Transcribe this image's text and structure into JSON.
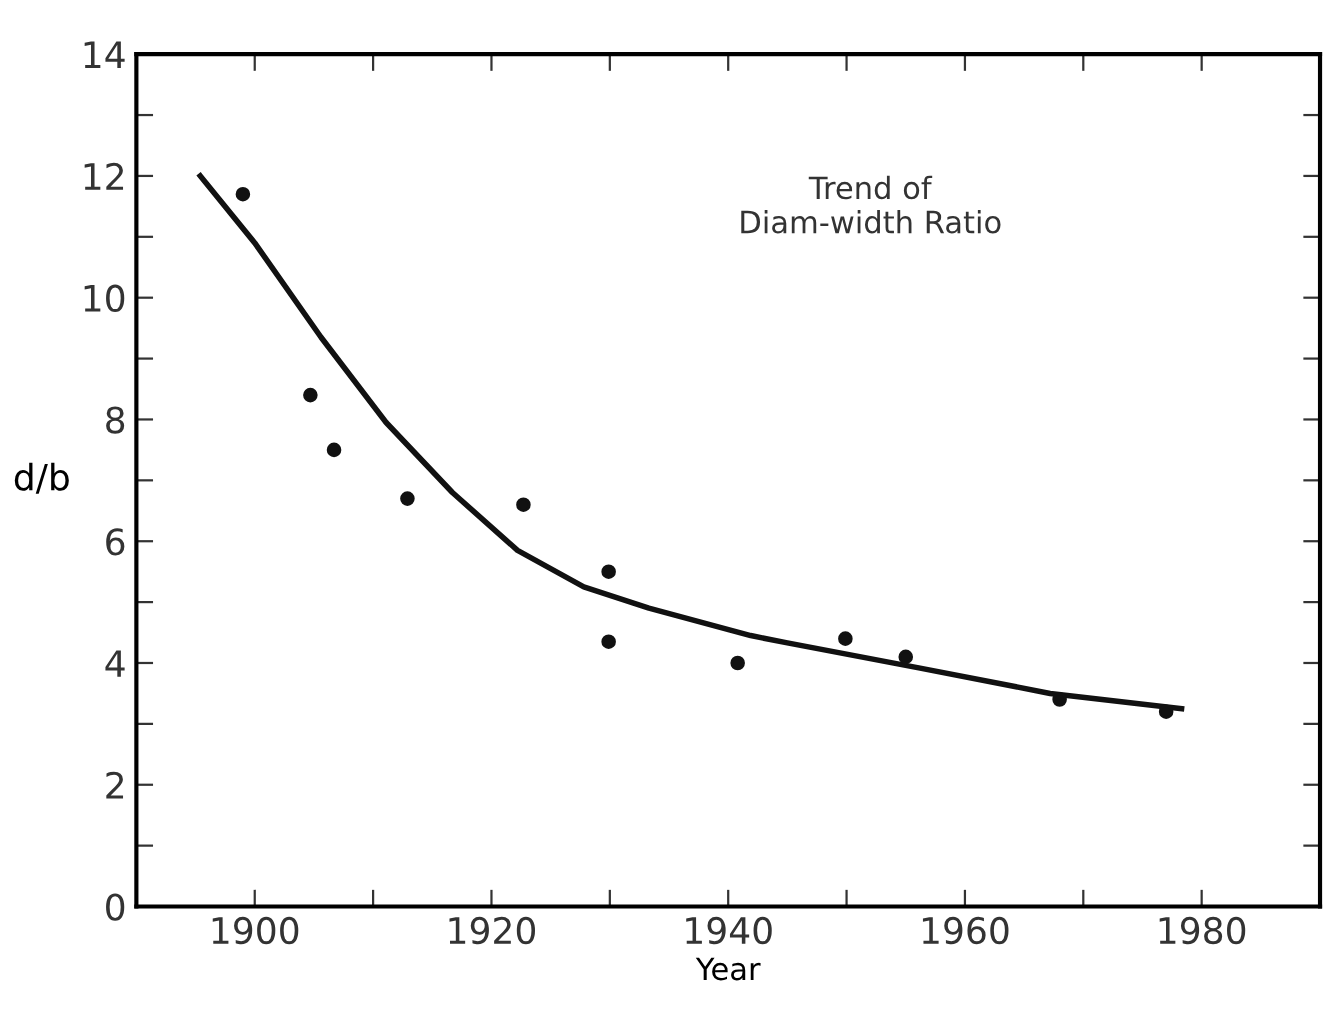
{
  "chart_data": {
    "type": "scatter",
    "xlabel": "Year",
    "ylabel": "d/b",
    "annotations": [
      "Trend of\nDiam-width Ratio"
    ],
    "xlim": [
      1890,
      1990
    ],
    "ylim": [
      0,
      14
    ],
    "xticks": [
      1900,
      {
        "value": 1910,
        "label": null
      },
      1920,
      {
        "value": 1930,
        "label": null
      },
      1940,
      {
        "value": 1950,
        "label": null
      },
      1960,
      {
        "value": 1970,
        "label": null
      },
      1980
    ],
    "yticks": [
      0,
      {
        "value": 1,
        "label": null
      },
      2,
      {
        "value": 3,
        "label": null
      },
      4,
      {
        "value": 5,
        "label": null
      },
      6,
      {
        "value": 7,
        "label": null
      },
      8,
      {
        "value": 9,
        "label": null
      },
      10,
      {
        "value": 11,
        "label": null
      },
      12,
      {
        "value": 13,
        "label": null
      },
      14
    ],
    "grid": false,
    "legend": false,
    "series": [
      {
        "color": "#111111",
        "marker": "circle",
        "x": [
          1899,
          1904.7,
          1906.7,
          1912.9,
          1922.7,
          1929.9,
          1929.9,
          1940.8,
          1949.9,
          1955,
          1968,
          1977
        ],
        "values": [
          11.7,
          8.4,
          7.5,
          6.7,
          6.6,
          5.5,
          4.35,
          4.0,
          4.4,
          4.1,
          3.4,
          3.2
        ]
      },
      {
        "type": "line",
        "color": "#111111",
        "marker": "none",
        "line_style": "solid",
        "x": [
          1895.4,
          1900,
          1905.6,
          1911.1,
          1916.7,
          1922.2,
          1927.8,
          1933.3,
          1941.9,
          1945,
          1956.1,
          1967.2,
          1978.3
        ],
        "values": [
          12.0,
          10.9,
          9.35,
          7.95,
          6.8,
          5.85,
          5.25,
          4.9,
          4.45,
          4.33,
          3.92,
          3.5,
          3.25
        ]
      }
    ]
  }
}
